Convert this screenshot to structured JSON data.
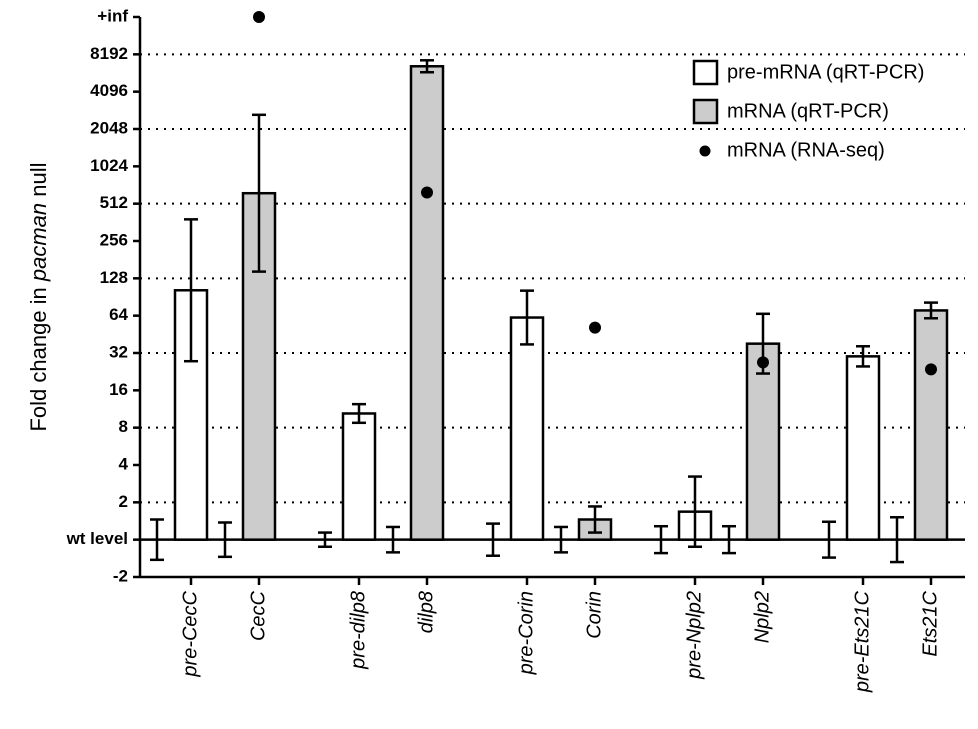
{
  "chart_data": {
    "type": "bar",
    "ylabel": [
      "Fold change in ",
      "pacman",
      " null"
    ],
    "categories": [
      "pre-CecC",
      "CecC",
      "pre-dilp8",
      "dilp8",
      "pre-Corin",
      "Corin",
      "pre-Nplp2",
      "Nplp2",
      "pre-Ets21C",
      "Ets21C"
    ],
    "ylim": [
      -1,
      14
    ],
    "yticks": [
      {
        "value": -1,
        "label": "-2"
      },
      {
        "value": 0,
        "label": "wt level"
      },
      {
        "value": 1,
        "label": "2"
      },
      {
        "value": 2,
        "label": "4"
      },
      {
        "value": 3,
        "label": "8"
      },
      {
        "value": 4,
        "label": "16"
      },
      {
        "value": 5,
        "label": "32"
      },
      {
        "value": 6,
        "label": "64"
      },
      {
        "value": 7,
        "label": "128"
      },
      {
        "value": 8,
        "label": "256"
      },
      {
        "value": 9,
        "label": "512"
      },
      {
        "value": 10,
        "label": "1024"
      },
      {
        "value": 11,
        "label": "2048"
      },
      {
        "value": 12,
        "label": "4096"
      },
      {
        "value": 13,
        "label": "8192"
      },
      {
        "value": 14,
        "label": "+inf"
      }
    ],
    "grid_lines": [
      1,
      3,
      5,
      7,
      9,
      11,
      13
    ],
    "control": {
      "values": [
        0,
        0,
        0,
        0,
        0,
        0,
        0,
        0,
        0,
        0
      ],
      "errors": [
        0.54,
        0.46,
        0.19,
        0.34,
        0.43,
        0.34,
        0.36,
        0.36,
        0.48,
        0.6
      ]
    },
    "series": [
      {
        "name": "pre-mRNA (qRT-PCR)",
        "color": "#ffffff",
        "values": [
          6.68,
          null,
          3.38,
          null,
          5.95,
          null,
          0.75,
          null,
          4.91,
          null
        ],
        "errors": [
          1.9,
          null,
          0.25,
          null,
          0.72,
          null,
          0.94,
          null,
          0.27,
          null
        ]
      },
      {
        "name": "mRNA (qRT-PCR)",
        "color": "#cccccc",
        "values": [
          null,
          9.28,
          null,
          12.68,
          null,
          0.54,
          null,
          5.25,
          null,
          6.14
        ],
        "errors": [
          null,
          2.1,
          null,
          0.16,
          null,
          0.35,
          null,
          0.8,
          null,
          0.21
        ]
      },
      {
        "name": "mRNA (RNA-seq)",
        "color": "#000000",
        "marker": "dot",
        "values": [
          null,
          14,
          null,
          9.3,
          null,
          5.68,
          null,
          4.75,
          null,
          4.56
        ]
      }
    ]
  }
}
